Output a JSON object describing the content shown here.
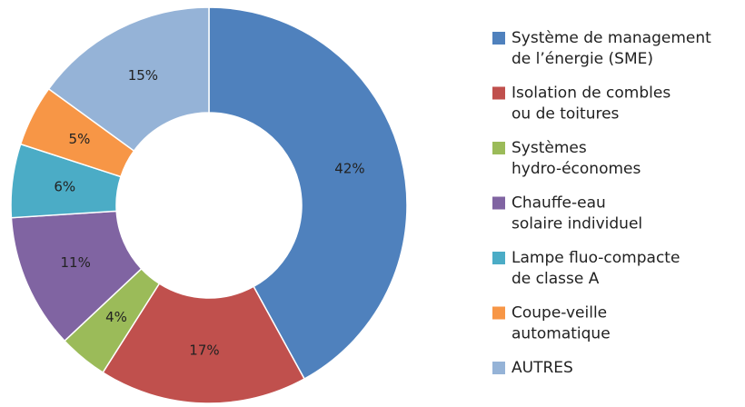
{
  "chart_data": {
    "type": "donut",
    "categories": [
      [
        "Système de management",
        "de l’énergie (SME)"
      ],
      [
        "Isolation de combles",
        "ou de  toitures"
      ],
      [
        "Systèmes",
        "hydro-économes"
      ],
      [
        "Chauffe-eau",
        "solaire individuel"
      ],
      [
        "Lampe fluo-compacte",
        "de classe A"
      ],
      [
        "Coupe-veille",
        "automatique"
      ],
      [
        "AUTRES"
      ]
    ],
    "values": [
      42,
      17,
      4,
      11,
      6,
      5,
      15
    ],
    "value_labels": [
      "42%",
      "17%",
      "4%",
      "11%",
      "6%",
      "5%",
      "15%"
    ],
    "colors": [
      "#4f81bd",
      "#c0504d",
      "#9bbb59",
      "#8064a2",
      "#4bacc6",
      "#f79646",
      "#95b3d7"
    ]
  }
}
